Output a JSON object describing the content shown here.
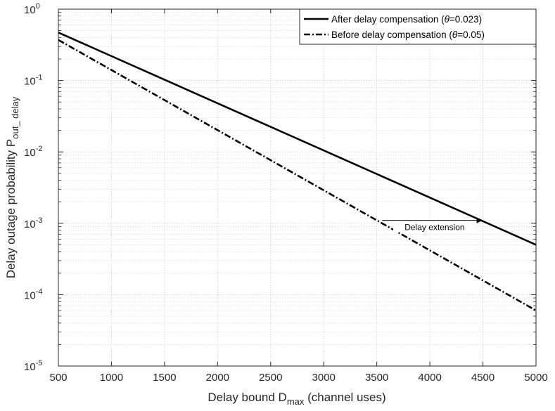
{
  "chart_data": {
    "type": "line",
    "xscale": "linear",
    "yscale": "log",
    "xlim": [
      500,
      5000
    ],
    "ylim": [
      1e-05,
      1
    ],
    "grid": true,
    "minor_grid": true,
    "xticks": [
      500,
      1000,
      1500,
      2000,
      2500,
      3000,
      3500,
      4000,
      4500,
      5000
    ],
    "xtick_labels": [
      "500",
      "1000",
      "1500",
      "2000",
      "2500",
      "3000",
      "3500",
      "4000",
      "4500",
      "5000"
    ],
    "yticks": [
      {
        "value": 1,
        "base": "10",
        "exp": "0"
      },
      {
        "value": 0.1,
        "base": "10",
        "exp": "-1"
      },
      {
        "value": 0.01,
        "base": "10",
        "exp": "-2"
      },
      {
        "value": 0.001,
        "base": "10",
        "exp": "-3"
      },
      {
        "value": 0.0001,
        "base": "10",
        "exp": "-4"
      },
      {
        "value": 1e-05,
        "base": "10",
        "exp": "-5"
      }
    ],
    "xlabel": {
      "prefix": "Delay bound D",
      "sub": "max",
      "suffix": " (channel uses)"
    },
    "ylabel": {
      "prefix": "Delay outage probability P",
      "sub": "out_ delay"
    },
    "legend_position": "top-right",
    "series": [
      {
        "name_prefix": "After delay compensation (",
        "name_theta": "θ",
        "name_suffix": "=0.023)",
        "style": "solid",
        "color": "#000000",
        "x": [
          500,
          5000
        ],
        "y": [
          0.47,
          0.0005
        ]
      },
      {
        "name_prefix": "Before delay compensation (",
        "name_theta": "θ",
        "name_suffix": "=0.05)",
        "style": "dashdot",
        "color": "#000000",
        "x": [
          500,
          5000
        ],
        "y": [
          0.37,
          6e-05
        ]
      }
    ],
    "annotations": [
      {
        "text": "Delay extension",
        "arrow_from": [
          3550,
          0.0011
        ],
        "arrow_to": [
          4500,
          0.0011
        ]
      }
    ]
  }
}
